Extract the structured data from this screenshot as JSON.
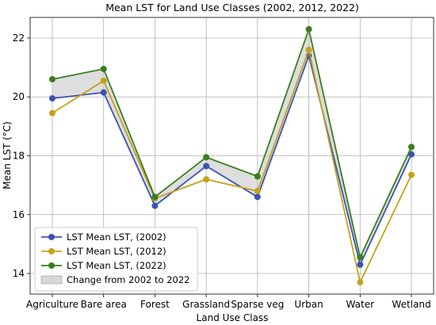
{
  "chart_data": {
    "type": "line",
    "title": "Mean LST for Land Use Classes (2002, 2012, 2022)",
    "xlabel": "Land Use Class",
    "ylabel": "Mean LST (°C)",
    "categories": [
      "Agriculture",
      "Bare area",
      "Forest",
      "Grassland",
      "Sparse veg",
      "Urban",
      "Water",
      "Wetland"
    ],
    "ylim": [
      13.3,
      22.7
    ],
    "yticks": [
      14,
      16,
      18,
      20,
      22
    ],
    "grid": true,
    "legend_position": "lower-left",
    "series": [
      {
        "name": "LST Mean LST, (2002)",
        "color": "#3b52b4",
        "values": [
          19.95,
          20.15,
          16.3,
          17.65,
          16.6,
          21.4,
          14.3,
          18.05
        ]
      },
      {
        "name": "LST Mean LST, (2012)",
        "color": "#c4a21a",
        "values": [
          19.45,
          20.55,
          16.55,
          17.2,
          16.8,
          21.6,
          13.7,
          17.35
        ]
      },
      {
        "name": "LST Mean LST, (2022)",
        "color": "#3a7d1e",
        "values": [
          20.6,
          20.95,
          16.6,
          17.95,
          17.3,
          22.3,
          14.55,
          18.3
        ]
      }
    ],
    "fill_between": {
      "label": "Change from 2002 to 2022",
      "from_series": 0,
      "to_series": 2,
      "color": "#c8c8c8"
    }
  }
}
